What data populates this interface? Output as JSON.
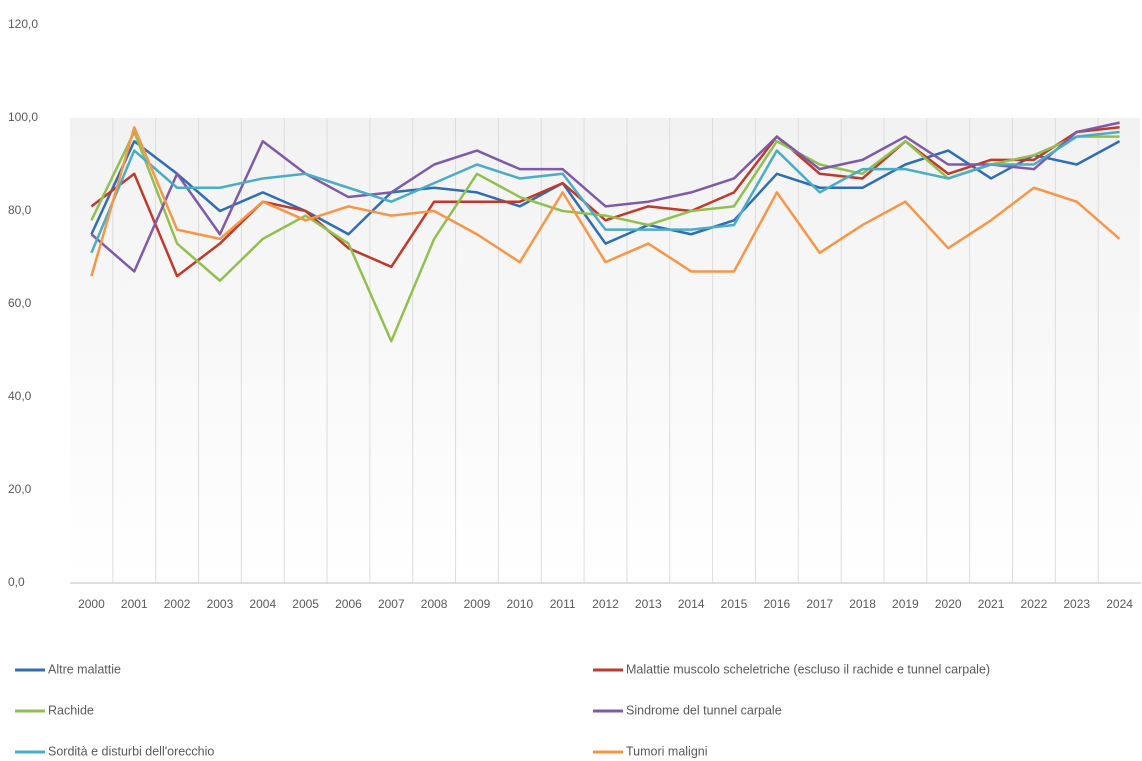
{
  "chart_data": {
    "type": "line",
    "categories": [
      "2000",
      "2001",
      "2002",
      "2003",
      "2004",
      "2005",
      "2006",
      "2007",
      "2008",
      "2009",
      "2010",
      "2011",
      "2012",
      "2013",
      "2014",
      "2015",
      "2016",
      "2017",
      "2018",
      "2019",
      "2020",
      "2021",
      "2022",
      "2023",
      "2024"
    ],
    "series": [
      {
        "name": "Altre malattie",
        "color": "#2f6eb5",
        "values": [
          75,
          95,
          88,
          80,
          84,
          80,
          75,
          84,
          85,
          84,
          81,
          86,
          73,
          77,
          75,
          78,
          88,
          85,
          85,
          90,
          93,
          87,
          92,
          90,
          95
        ]
      },
      {
        "name": "Malattie muscolo scheletriche (escluso il rachide e tunnel carpale)",
        "color": "#c0392b",
        "values": [
          81,
          88,
          66,
          73,
          82,
          80,
          72,
          68,
          82,
          82,
          82,
          86,
          78,
          81,
          80,
          84,
          96,
          88,
          87,
          95,
          88,
          91,
          91,
          97,
          98
        ]
      },
      {
        "name": "Rachide",
        "color": "#92c050",
        "values": [
          78,
          97,
          73,
          65,
          74,
          79,
          73,
          52,
          74,
          88,
          83,
          80,
          79,
          77,
          80,
          81,
          95,
          90,
          88,
          95,
          87,
          90,
          92,
          96,
          96
        ]
      },
      {
        "name": "Sindrome del tunnel carpale",
        "color": "#7f5aa8",
        "values": [
          75,
          67,
          88,
          75,
          95,
          88,
          83,
          84,
          90,
          93,
          89,
          89,
          81,
          82,
          84,
          87,
          96,
          89,
          91,
          96,
          90,
          90,
          89,
          97,
          99
        ]
      },
      {
        "name": "Sordità e disturbi dell'orecchio",
        "color": "#4bacc6",
        "values": [
          71,
          93,
          85,
          85,
          87,
          88,
          85,
          82,
          86,
          90,
          87,
          88,
          76,
          76,
          76,
          77,
          93,
          84,
          89,
          89,
          87,
          90,
          90,
          96,
          97
        ]
      },
      {
        "name": "Tumori maligni",
        "color": "#f79646",
        "values": [
          66,
          98,
          76,
          74,
          82,
          78,
          81,
          79,
          80,
          75,
          69,
          84,
          69,
          73,
          67,
          67,
          84,
          71,
          77,
          82,
          72,
          78,
          85,
          82,
          74
        ]
      }
    ],
    "ylim": [
      0,
      120
    ],
    "yticks": [
      {
        "value": 0,
        "label": "0,0"
      },
      {
        "value": 20,
        "label": "20,0"
      },
      {
        "value": 40,
        "label": "40,0"
      },
      {
        "value": 60,
        "label": "60,0"
      },
      {
        "value": 80,
        "label": "80,0"
      },
      {
        "value": 100,
        "label": "100,0"
      },
      {
        "value": 120,
        "label": "120,0"
      }
    ]
  }
}
